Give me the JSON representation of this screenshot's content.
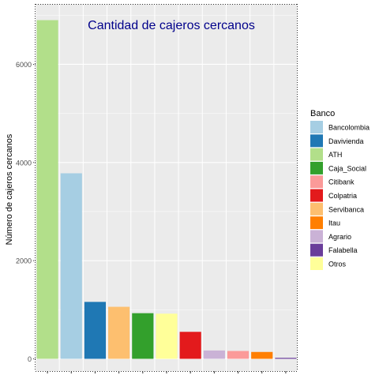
{
  "chart_data": {
    "type": "bar",
    "title": "Cantidad de cajeros cercanos",
    "xlabel": "",
    "ylabel": "Número de cajeros cercanos",
    "categories": [
      "ATH",
      "Bancolombia",
      "Davivienda",
      "Servibanca",
      "Caja_Social",
      "Otros",
      "Colpatria",
      "Agrario",
      "Citibank",
      "Itau",
      "Falabella"
    ],
    "values": [
      6900,
      3780,
      1160,
      1060,
      930,
      920,
      550,
      170,
      160,
      140,
      20
    ],
    "colors": [
      "#b2df8a",
      "#a6cee3",
      "#1f78b4",
      "#fdbf6f",
      "#33a02c",
      "#ffff99",
      "#e31a1c",
      "#cab2d6",
      "#fb9a99",
      "#ff7f00",
      "#6a3d9a"
    ],
    "yticks": [
      0,
      2000,
      4000,
      6000
    ],
    "ylim": [
      -250,
      7230
    ],
    "grid": true,
    "legend": {
      "title": "Banco",
      "placement": "right",
      "items": [
        {
          "label": "Bancolombia",
          "color": "#a6cee3"
        },
        {
          "label": "Davivienda",
          "color": "#1f78b4"
        },
        {
          "label": "ATH",
          "color": "#b2df8a"
        },
        {
          "label": "Caja_Social",
          "color": "#33a02c"
        },
        {
          "label": "Citibank",
          "color": "#fb9a99"
        },
        {
          "label": "Colpatria",
          "color": "#e31a1c"
        },
        {
          "label": "Servibanca",
          "color": "#fdbf6f"
        },
        {
          "label": "Itau",
          "color": "#ff7f00"
        },
        {
          "label": "Agrario",
          "color": "#cab2d6"
        },
        {
          "label": "Falabella",
          "color": "#6a3d9a"
        },
        {
          "label": "Otros",
          "color": "#ffff99"
        }
      ]
    }
  }
}
